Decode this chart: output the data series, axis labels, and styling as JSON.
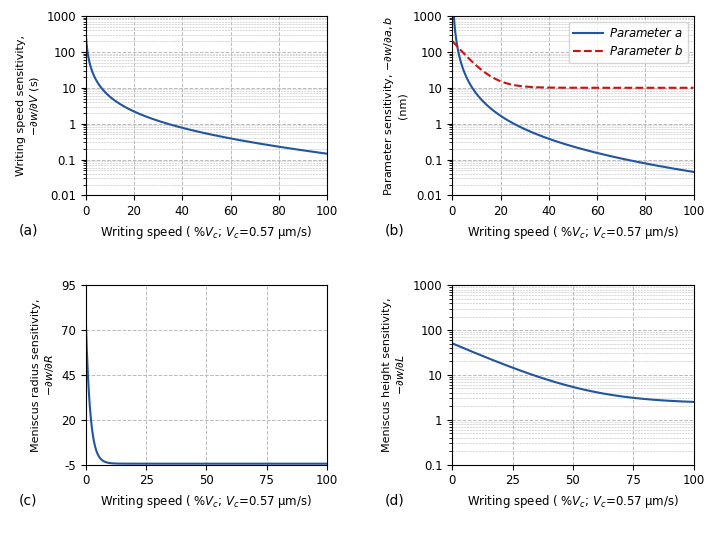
{
  "line_color_blue": "#2255a0",
  "line_color_red": "#cc1111",
  "grid_color": "#bbbbbb",
  "grid_style": "--",
  "grid_lw": 0.7,
  "xlabel": "Writing speed ( %$V_c$; $V_c$=0.57 μm/s)",
  "ylabel_a": "Writing speed sensitivity,\n$-∂w/∂V$ (s)",
  "ylabel_b": "Parameter sensitivity, $-∂w/∂a, b$\n(nm)",
  "ylabel_c": "Meniscus radius sensitivity,\n$-∂w/∂R$",
  "ylabel_d": "Meniscus height sensitivity,\n$-∂w/∂L$",
  "label_a": "(a)",
  "label_b": "(b)",
  "label_c": "(c)",
  "label_d": "(d)",
  "legend_param_a": "Parameter $a$",
  "legend_param_b": "Parameter $b$",
  "xlim": [
    0,
    100
  ],
  "ylim_a": [
    0.01,
    1000
  ],
  "ylim_b": [
    0.01,
    1000
  ],
  "ylim_c": [
    -5,
    95
  ],
  "ylim_d": [
    0.1,
    1000
  ],
  "yticks_a": [
    0.01,
    0.1,
    1,
    10,
    100,
    1000
  ],
  "ytick_labels_a": [
    "0.01",
    "0.1",
    "1",
    "10",
    "100",
    "1000"
  ],
  "yticks_b": [
    0.01,
    0.1,
    1,
    10,
    100,
    1000
  ],
  "ytick_labels_b": [
    "0.01",
    "0.1",
    "1",
    "10",
    "100",
    "1000"
  ],
  "yticks_c": [
    -5,
    20,
    45,
    70,
    95
  ],
  "ytick_labels_c": [
    "-5",
    "20",
    "45",
    "70",
    "95"
  ],
  "yticks_d": [
    0.1,
    1,
    10,
    100,
    1000
  ],
  "ytick_labels_d": [
    "0.1",
    "1",
    "10",
    "100",
    "1000"
  ],
  "xticks_ab": [
    0,
    20,
    40,
    60,
    80,
    100
  ],
  "xticks_cd": [
    0,
    25,
    50,
    75,
    100
  ],
  "figsize": [
    7.15,
    5.34
  ],
  "dpi": 100
}
